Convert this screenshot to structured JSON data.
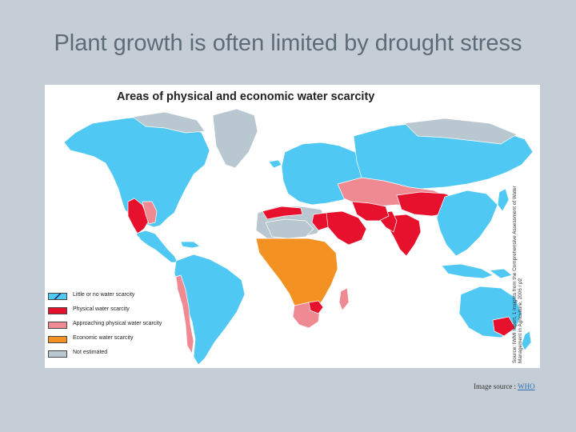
{
  "slide": {
    "title": "Plant growth is often limited by drought stress",
    "credit_prefix": "Image source : ",
    "credit_link": "WHO"
  },
  "map": {
    "title": "Areas of physical and economic water scarcity",
    "source_note": "Source: IWMI report, 1 Insights from the Comprehensive Assessment of Water Management in Agriculture, 2006 / p2",
    "colors": {
      "little": "#4fc9f3",
      "physical": "#e8112d",
      "approaching": "#ef8a93",
      "economic": "#f39222",
      "not_estimated": "#b9c8d0",
      "ocean": "#ffffff",
      "border": "#ffffff"
    },
    "legend": [
      {
        "label": "Little or no water scarcity",
        "color": "#4fc9f3",
        "hatched": true
      },
      {
        "label": "Physical water scarcity",
        "color": "#e8112d",
        "hatched": false
      },
      {
        "label": "Approaching physical water scarcity",
        "color": "#ef8a93",
        "hatched": false
      },
      {
        "label": "Economic water scarcity",
        "color": "#f39222",
        "hatched": false
      },
      {
        "label": "Not estimated",
        "color": "#b9c8d0",
        "hatched": false
      }
    ]
  }
}
